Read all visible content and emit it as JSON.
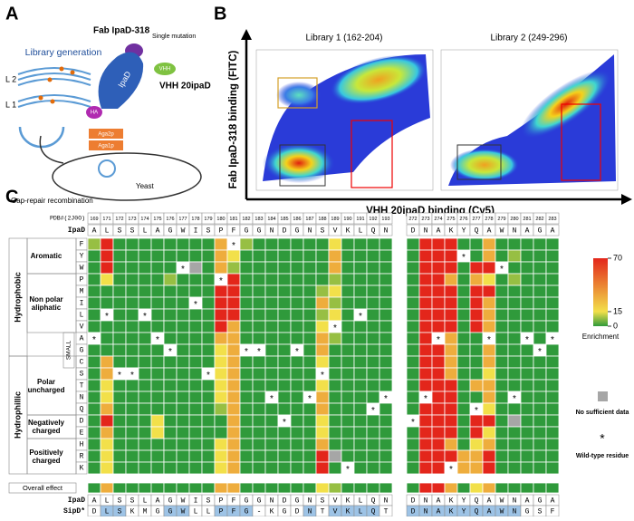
{
  "panel_a": {
    "label": "A",
    "library_generation": "Library generation",
    "l2": "L 2",
    "l1": "L 1",
    "fab": "Fab IpaD-318",
    "single_mutation": "Single mutation",
    "ipad": "IpaD",
    "vhh": "VHH",
    "vhh_name": "VHH 20ipaD",
    "ha": "HA",
    "aga2p": "Aga2p",
    "aga1p": "Aga1p",
    "gap_repair": "Gap-repair recombination",
    "yeast": "Yeast"
  },
  "panel_b": {
    "label": "B",
    "plots": [
      {
        "title": "Library 1 (162-204)"
      },
      {
        "title": "Library 2 (249-296)"
      }
    ],
    "y_label": "Fab IpaD-318 binding (FITC)",
    "x_label": "VHH 20ipaD binding (Cy5)"
  },
  "panel_c": {
    "label": "C",
    "pdb_label": "PDB#(2J0O)",
    "ref_label": "IpaD",
    "sipd_label": "SipD*",
    "overall_label": "Overall effect",
    "positions": [
      169,
      171,
      172,
      173,
      174,
      175,
      176,
      177,
      178,
      179,
      180,
      181,
      182,
      183,
      184,
      185,
      186,
      187,
      188,
      189,
      190,
      191,
      192,
      193,
      272,
      273,
      274,
      275,
      276,
      277,
      278,
      279,
      280,
      281,
      282,
      283
    ],
    "ipad": [
      "A",
      "L",
      "S",
      "S",
      "L",
      "A",
      "G",
      "W",
      "I",
      "S",
      "P",
      "F",
      "G",
      "G",
      "N",
      "D",
      "G",
      "N",
      "S",
      "V",
      "K",
      "L",
      "Q",
      "N",
      "D",
      "N",
      "A",
      "K",
      "Y",
      "Q",
      "A",
      "W",
      "N",
      "A",
      "G",
      "A"
    ],
    "sipd": [
      "D",
      "L",
      "S",
      "K",
      "M",
      "G",
      "G",
      "W",
      "L",
      "L",
      "P",
      "F",
      "G",
      "-",
      "K",
      "G",
      "D",
      "N",
      "T",
      "V",
      "K",
      "L",
      "Q",
      "T",
      "D",
      "N",
      "A",
      "K",
      "Y",
      "Q",
      "A",
      "W",
      "N",
      "G",
      "S",
      "F"
    ],
    "residues": [
      "F",
      "Y",
      "W",
      "P",
      "M",
      "I",
      "L",
      "V",
      "A",
      "G",
      "C",
      "S",
      "T",
      "N",
      "Q",
      "D",
      "E",
      "H",
      "R",
      "K"
    ],
    "rows": [
      [
        8,
        70,
        0,
        0,
        0,
        0,
        0,
        0,
        0,
        0,
        30,
        null,
        8,
        0,
        0,
        0,
        0,
        0,
        0,
        15,
        0,
        0,
        0,
        0,
        0,
        70,
        70,
        70,
        0,
        0,
        30,
        0,
        0,
        0,
        0,
        0
      ],
      [
        0,
        70,
        0,
        0,
        0,
        0,
        0,
        0,
        0,
        0,
        30,
        15,
        0,
        0,
        0,
        0,
        0,
        0,
        0,
        30,
        0,
        0,
        0,
        0,
        0,
        70,
        70,
        70,
        null,
        0,
        30,
        0,
        8,
        0,
        0,
        0
      ],
      [
        0,
        70,
        0,
        0,
        0,
        0,
        0,
        null,
        null,
        0,
        30,
        8,
        0,
        0,
        0,
        0,
        0,
        0,
        0,
        30,
        0,
        0,
        0,
        0,
        0,
        70,
        70,
        70,
        0,
        70,
        70,
        null,
        0,
        0,
        0,
        0
      ],
      [
        0,
        15,
        0,
        0,
        0,
        0,
        8,
        0,
        0,
        0,
        null,
        70,
        0,
        0,
        0,
        0,
        0,
        0,
        0,
        8,
        0,
        0,
        0,
        0,
        0,
        70,
        70,
        30,
        0,
        30,
        15,
        0,
        8,
        0,
        0,
        0
      ],
      [
        0,
        0,
        0,
        0,
        0,
        0,
        0,
        0,
        0,
        0,
        70,
        70,
        0,
        0,
        0,
        0,
        0,
        0,
        8,
        15,
        0,
        0,
        0,
        0,
        0,
        70,
        70,
        70,
        0,
        70,
        70,
        0,
        0,
        0,
        0,
        0
      ],
      [
        0,
        0,
        0,
        0,
        0,
        0,
        0,
        0,
        null,
        0,
        70,
        70,
        0,
        0,
        0,
        0,
        0,
        0,
        30,
        8,
        0,
        0,
        0,
        0,
        0,
        70,
        70,
        70,
        0,
        70,
        30,
        0,
        0,
        0,
        0,
        0
      ],
      [
        0,
        null,
        0,
        0,
        null,
        0,
        0,
        0,
        0,
        0,
        70,
        70,
        0,
        0,
        0,
        0,
        0,
        0,
        8,
        15,
        0,
        null,
        0,
        0,
        0,
        70,
        70,
        70,
        0,
        70,
        30,
        0,
        0,
        0,
        0,
        0
      ],
      [
        0,
        0,
        0,
        0,
        0,
        0,
        0,
        0,
        0,
        0,
        70,
        30,
        0,
        0,
        0,
        0,
        0,
        0,
        15,
        null,
        0,
        0,
        0,
        0,
        0,
        70,
        70,
        70,
        0,
        70,
        30,
        0,
        0,
        0,
        0,
        0
      ],
      [
        null,
        0,
        0,
        0,
        0,
        null,
        0,
        0,
        0,
        0,
        30,
        30,
        0,
        0,
        0,
        0,
        0,
        0,
        30,
        8,
        0,
        0,
        0,
        0,
        0,
        70,
        null,
        30,
        0,
        0,
        null,
        0,
        0,
        null,
        0,
        null
      ],
      [
        0,
        0,
        0,
        0,
        0,
        0,
        null,
        0,
        0,
        0,
        15,
        30,
        null,
        null,
        0,
        0,
        null,
        0,
        30,
        0,
        0,
        0,
        0,
        0,
        0,
        70,
        70,
        30,
        0,
        0,
        30,
        0,
        0,
        0,
        null,
        0
      ],
      [
        0,
        30,
        0,
        0,
        0,
        0,
        0,
        0,
        0,
        0,
        15,
        30,
        0,
        0,
        0,
        0,
        0,
        0,
        15,
        0,
        0,
        0,
        0,
        0,
        0,
        70,
        70,
        30,
        0,
        0,
        30,
        0,
        0,
        0,
        0,
        0
      ],
      [
        0,
        30,
        null,
        null,
        0,
        0,
        0,
        0,
        0,
        null,
        15,
        30,
        0,
        0,
        0,
        0,
        0,
        0,
        null,
        0,
        0,
        0,
        0,
        0,
        0,
        70,
        70,
        30,
        0,
        0,
        15,
        0,
        0,
        0,
        0,
        0
      ],
      [
        0,
        15,
        0,
        0,
        0,
        0,
        0,
        0,
        0,
        0,
        15,
        30,
        0,
        0,
        0,
        0,
        0,
        0,
        15,
        0,
        0,
        0,
        0,
        0,
        0,
        70,
        70,
        70,
        0,
        30,
        30,
        0,
        0,
        0,
        0,
        0
      ],
      [
        0,
        15,
        0,
        0,
        0,
        0,
        0,
        0,
        0,
        0,
        15,
        30,
        0,
        0,
        null,
        0,
        0,
        null,
        30,
        0,
        0,
        0,
        0,
        null,
        0,
        null,
        70,
        70,
        0,
        0,
        30,
        0,
        null,
        0,
        0,
        0
      ],
      [
        0,
        30,
        0,
        0,
        0,
        0,
        0,
        0,
        0,
        0,
        8,
        30,
        0,
        0,
        0,
        0,
        0,
        0,
        30,
        0,
        0,
        0,
        null,
        0,
        0,
        70,
        70,
        70,
        0,
        null,
        15,
        0,
        0,
        0,
        0,
        0
      ],
      [
        0,
        70,
        0,
        0,
        0,
        15,
        0,
        0,
        0,
        0,
        0,
        30,
        0,
        0,
        0,
        null,
        0,
        0,
        15,
        0,
        0,
        0,
        0,
        0,
        null,
        70,
        70,
        70,
        0,
        70,
        70,
        0,
        null,
        0,
        0,
        0
      ],
      [
        0,
        30,
        0,
        0,
        0,
        15,
        0,
        0,
        0,
        0,
        0,
        30,
        0,
        0,
        0,
        0,
        0,
        0,
        15,
        0,
        0,
        0,
        0,
        0,
        0,
        70,
        70,
        70,
        0,
        70,
        15,
        0,
        0,
        0,
        0,
        0
      ],
      [
        0,
        15,
        0,
        0,
        0,
        0,
        0,
        0,
        0,
        0,
        15,
        30,
        0,
        0,
        0,
        0,
        0,
        0,
        30,
        0,
        0,
        0,
        0,
        0,
        0,
        70,
        70,
        30,
        0,
        15,
        30,
        0,
        0,
        0,
        0,
        0
      ],
      [
        0,
        15,
        0,
        0,
        0,
        0,
        0,
        0,
        0,
        0,
        15,
        30,
        0,
        0,
        0,
        0,
        0,
        0,
        70,
        null,
        0,
        0,
        0,
        0,
        0,
        70,
        70,
        70,
        30,
        30,
        70,
        0,
        0,
        0,
        0,
        0
      ],
      [
        0,
        15,
        0,
        0,
        0,
        0,
        0,
        0,
        0,
        0,
        15,
        30,
        0,
        0,
        0,
        0,
        0,
        0,
        70,
        0,
        null,
        0,
        0,
        0,
        0,
        70,
        70,
        null,
        30,
        30,
        70,
        0,
        0,
        0,
        0,
        0
      ]
    ],
    "overall": [
      0,
      30,
      0,
      0,
      0,
      0,
      0,
      0,
      0,
      0,
      30,
      30,
      0,
      0,
      0,
      0,
      0,
      0,
      15,
      8,
      0,
      0,
      0,
      0,
      0,
      70,
      70,
      30,
      0,
      15,
      30,
      0,
      0,
      0,
      0,
      0
    ],
    "groups": [
      {
        "name": "Hydrophobic",
        "rows": [
          "F",
          "Y",
          "W",
          "P",
          "M",
          "I",
          "L",
          "V",
          "A",
          "G"
        ]
      },
      {
        "name": "Hydrophillic",
        "rows": [
          "C",
          "S",
          "T",
          "N",
          "Q",
          "D",
          "E",
          "H",
          "R",
          "K"
        ]
      }
    ],
    "subgroups": [
      {
        "name": "Aromatic",
        "rows": [
          "F",
          "Y",
          "W"
        ]
      },
      {
        "name": "Non polar aliphatic",
        "rows": [
          "P",
          "M",
          "I",
          "L",
          "V"
        ]
      },
      {
        "name": "SMALL",
        "rows": [
          "A",
          "G",
          "C"
        ]
      },
      {
        "name": "Polar uncharged",
        "rows": [
          "C",
          "S",
          "T",
          "N",
          "Q"
        ]
      },
      {
        "name": "Negatively charged",
        "rows": [
          "D",
          "E"
        ]
      },
      {
        "name": "Positively charged",
        "rows": [
          "H",
          "R",
          "K"
        ]
      }
    ],
    "legend": {
      "title": "Enrichment",
      "ticks": [
        0,
        15,
        70
      ],
      "colors": [
        "#2f9a3b",
        "#f2e04a",
        "#e3261b"
      ],
      "no_data": "No sufficient data",
      "no_data_color": "#a6a6a6",
      "wild_type_symbol": "*",
      "wild_type": "Wild-type residue",
      "match_color": "#9dc3e6"
    }
  }
}
